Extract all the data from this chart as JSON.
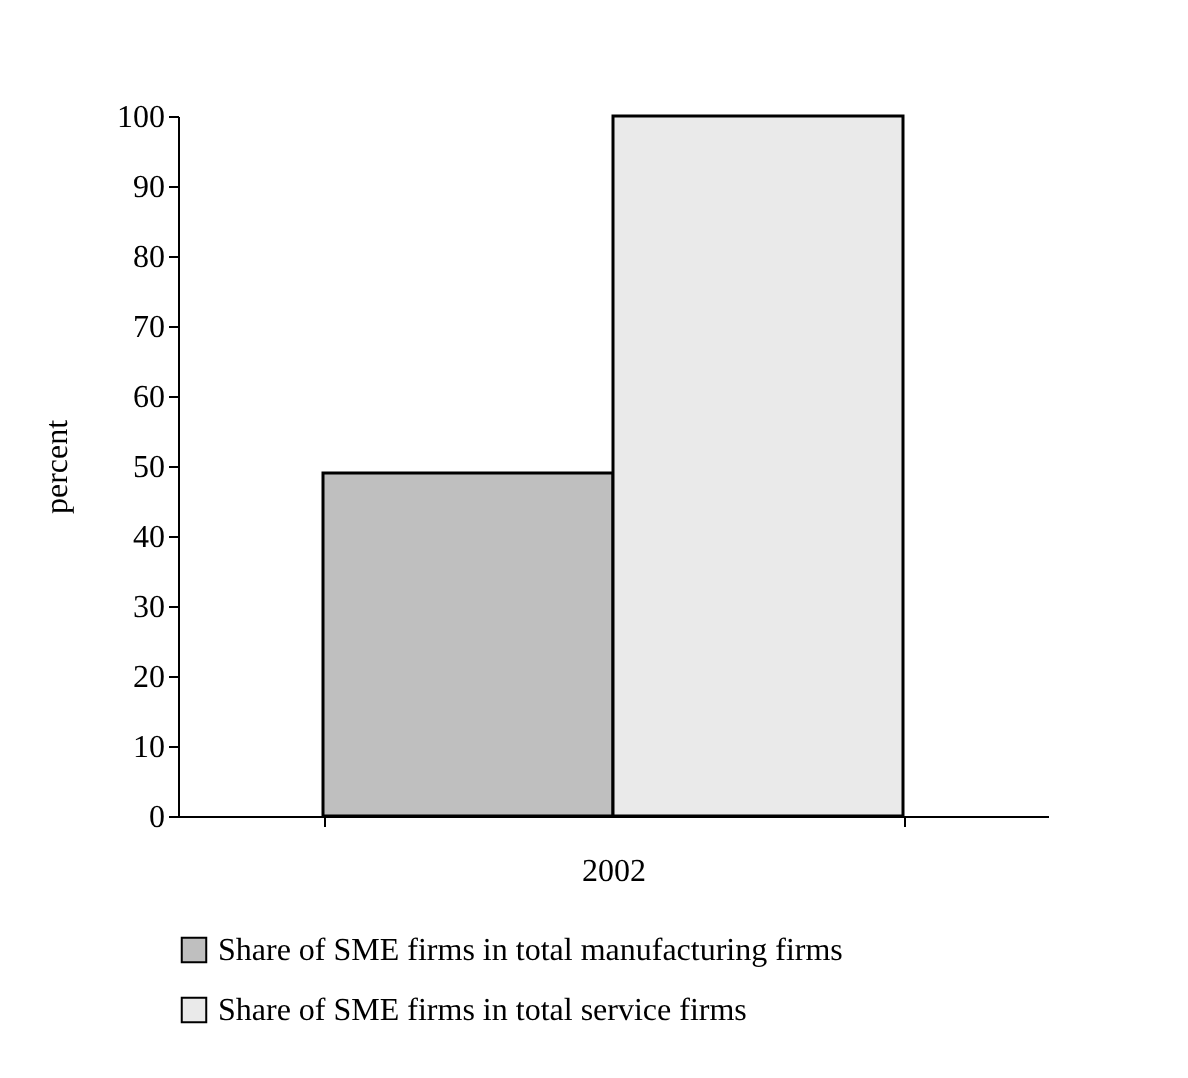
{
  "chart_data": {
    "type": "bar",
    "ylabel": "percent",
    "categories": [
      "2002"
    ],
    "series": [
      {
        "name": "Share of SME firms in total manufacturing firms",
        "color": "#bfbfbf",
        "values": [
          49
        ]
      },
      {
        "name": "Share of SME firms in total service firms",
        "color": "#eaeaea",
        "values": [
          100
        ]
      }
    ],
    "ylim": [
      0,
      100
    ],
    "yticks": [
      0,
      10,
      20,
      30,
      40,
      50,
      60,
      70,
      80,
      90,
      100
    ],
    "grid": false,
    "legend": "bottom"
  }
}
